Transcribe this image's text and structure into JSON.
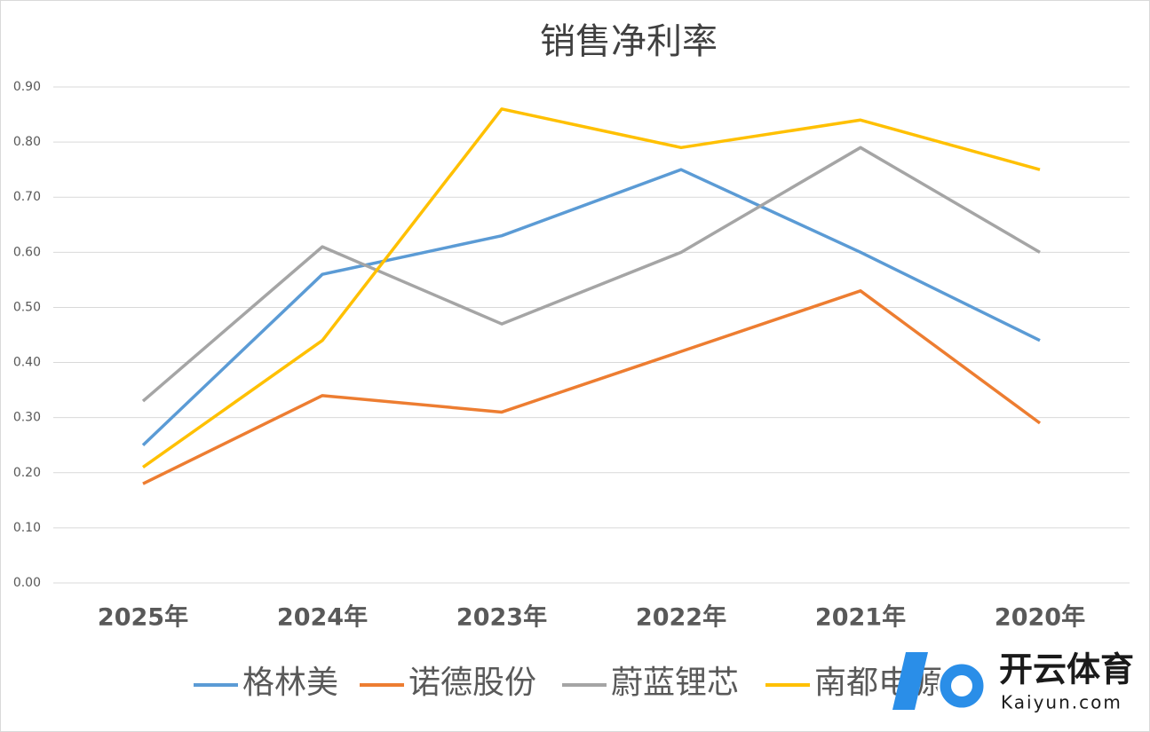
{
  "chart_data": {
    "type": "line",
    "title": "销售净利率",
    "categories": [
      "2025年",
      "2024年",
      "2023年",
      "2022年",
      "2021年",
      "2020年"
    ],
    "series": [
      {
        "name": "格林美",
        "color": "#5b9bd5",
        "values": [
          0.25,
          0.56,
          0.63,
          0.75,
          0.6,
          0.44
        ]
      },
      {
        "name": "诺德股份",
        "color": "#ed7d31",
        "values": [
          0.18,
          0.34,
          0.31,
          0.42,
          0.53,
          0.29
        ]
      },
      {
        "name": "蔚蓝锂芯",
        "color": "#a5a5a5",
        "values": [
          0.33,
          0.61,
          0.47,
          0.6,
          0.79,
          0.6
        ]
      },
      {
        "name": "南都电源",
        "color": "#ffc000",
        "values": [
          0.21,
          0.44,
          0.86,
          0.79,
          0.84,
          0.75
        ]
      }
    ],
    "ylim": [
      0,
      0.9
    ],
    "yticks": [
      {
        "value": 0,
        "label": "0.00"
      },
      {
        "value": 0.1,
        "label": "0.10"
      },
      {
        "value": 0.2,
        "label": "0.20"
      },
      {
        "value": 0.3,
        "label": "0.30"
      },
      {
        "value": 0.4,
        "label": "0.40"
      },
      {
        "value": 0.5,
        "label": "0.50"
      },
      {
        "value": 0.6,
        "label": "0.60"
      },
      {
        "value": 0.7,
        "label": "0.70"
      },
      {
        "value": 0.8,
        "label": "0.80"
      },
      {
        "value": 0.9,
        "label": "0.90"
      }
    ],
    "grid": true,
    "legend": "bottom"
  },
  "watermark": {
    "text": "开云体育",
    "url": "Kaiyun.com"
  }
}
